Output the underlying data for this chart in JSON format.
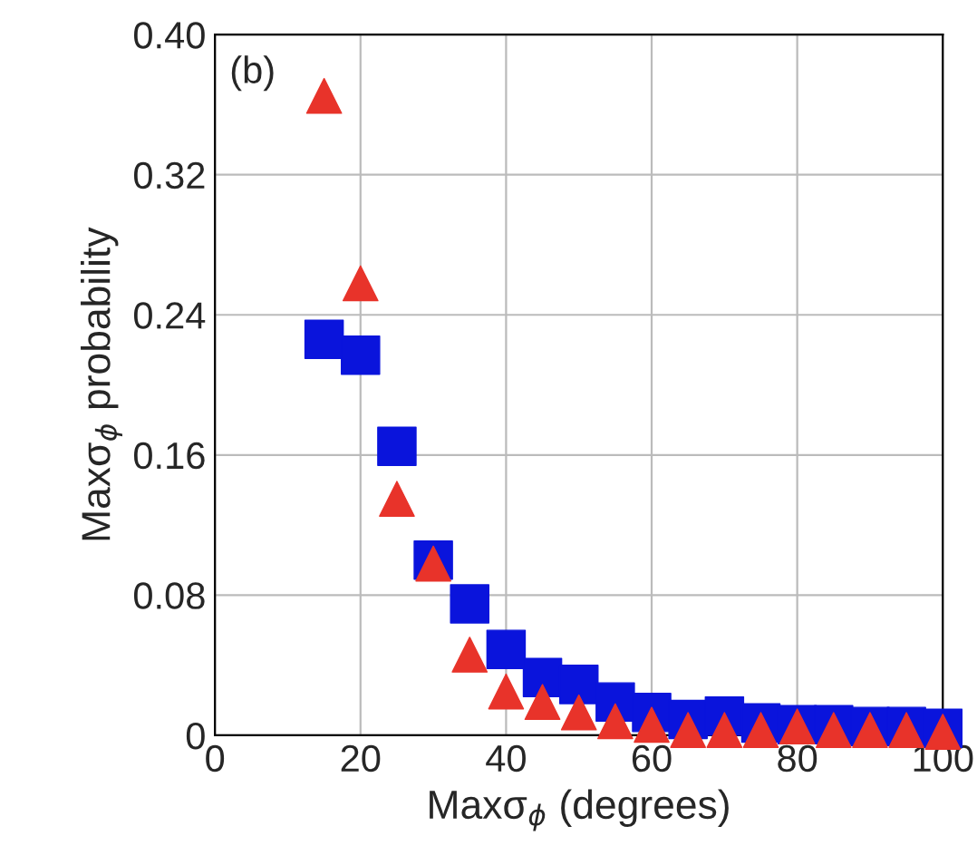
{
  "chart_data": {
    "type": "scatter",
    "xlabel": "Maxσ$_{ϕ}$ (degrees)",
    "ylabel": "Maxσ$_{ϕ}$ probability",
    "annotations": [
      "(b)"
    ],
    "x": [
      15,
      20,
      25,
      30,
      35,
      40,
      45,
      50,
      55,
      60,
      65,
      70,
      75,
      80,
      85,
      90,
      95,
      100
    ],
    "series": [
      {
        "color": "#0a14dc",
        "marker": "square",
        "values": [
          0.226,
          0.217,
          0.165,
          0.1,
          0.075,
          0.049,
          0.033,
          0.029,
          0.019,
          0.013,
          0.009,
          0.011,
          0.007,
          0.006,
          0.006,
          0.005,
          0.005,
          0.004
        ]
      },
      {
        "color": "#e8332a",
        "marker": "triangle",
        "values": [
          0.365,
          0.258,
          0.135,
          0.098,
          0.046,
          0.025,
          0.019,
          0.013,
          0.008,
          0.006,
          0.003,
          0.003,
          0.003,
          0.005,
          0.003,
          0.003,
          0.003,
          0.002
        ]
      }
    ],
    "xlim": [
      0,
      100
    ],
    "xticks": [
      0,
      20,
      40,
      60,
      80,
      100
    ],
    "ylim": [
      0,
      0.4
    ],
    "yticks": [
      0,
      0.08,
      0.16,
      0.24,
      0.32,
      {
        "value": 0.4,
        "label": "0.40"
      }
    ],
    "grid": true
  }
}
